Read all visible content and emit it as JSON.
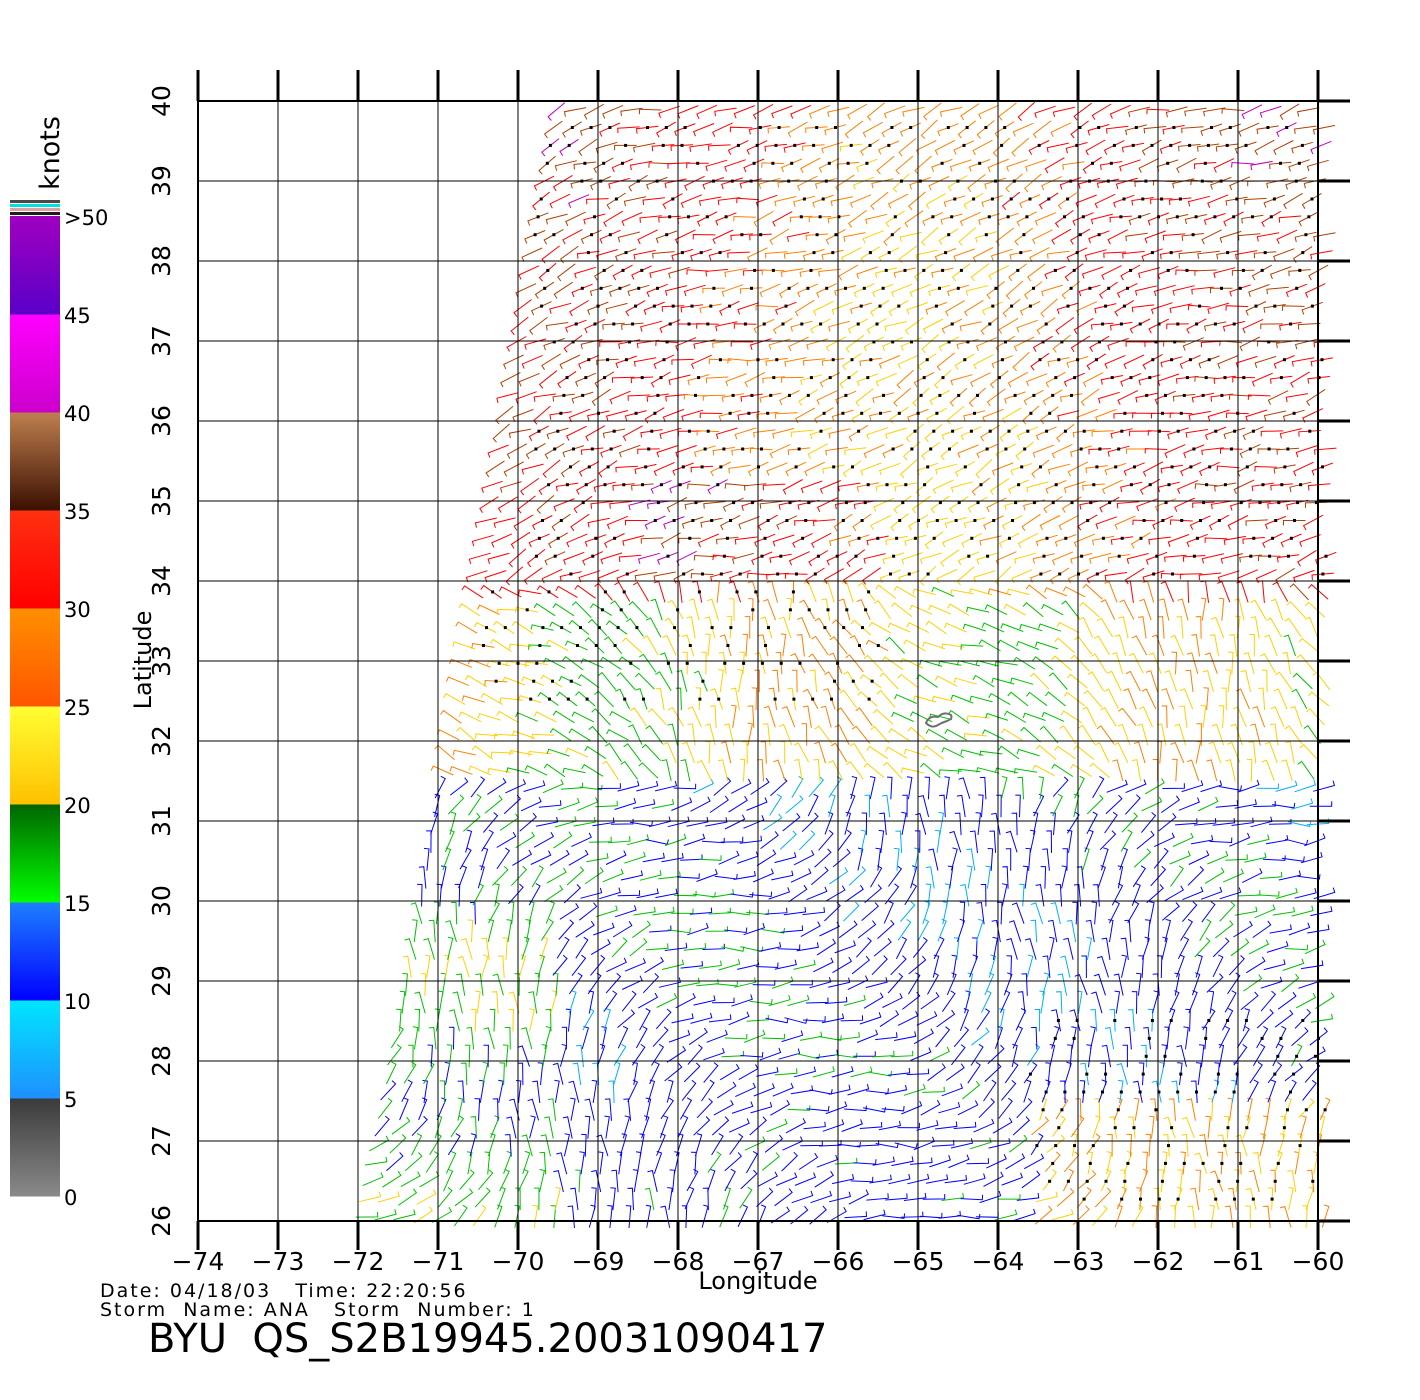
{
  "map": {
    "axes": {
      "xlabel": "Longitude",
      "ylabel": "Latitude",
      "x_ticks": [
        -74,
        -73,
        -72,
        -71,
        -70,
        -69,
        -68,
        -67,
        -66,
        -65,
        -64,
        -63,
        -62,
        -61,
        -60
      ],
      "y_ticks": [
        26,
        27,
        28,
        29,
        30,
        31,
        32,
        33,
        34,
        35,
        36,
        37,
        38,
        39,
        40
      ],
      "x_range": [
        -74,
        -60
      ],
      "y_range": [
        26,
        40
      ],
      "grid": true
    },
    "legend": {
      "title": "knots",
      "labels": [
        {
          "text": "0",
          "value": 0
        },
        {
          "text": "5",
          "value": 5
        },
        {
          "text": "10",
          "value": 10
        },
        {
          "text": "15",
          "value": 15
        },
        {
          "text": "20",
          "value": 20
        },
        {
          "text": "25",
          "value": 25
        },
        {
          "text": "30",
          "value": 30
        },
        {
          "text": "35",
          "value": 35
        },
        {
          "text": "40",
          "value": 40
        },
        {
          "text": "45",
          "value": 45
        },
        {
          "text": ">50",
          "value": 50
        }
      ],
      "bands": [
        {
          "from": 0,
          "to": 5,
          "top": "#3a3a3a",
          "bottom": "#8a8a8a"
        },
        {
          "from": 5,
          "to": 10,
          "top": "#00e6ff",
          "bottom": "#1e90ff"
        },
        {
          "from": 10,
          "to": 15,
          "top": "#1e80ff",
          "bottom": "#0000ff"
        },
        {
          "from": 15,
          "to": 20,
          "top": "#006400",
          "bottom": "#00ff00"
        },
        {
          "from": 20,
          "to": 25,
          "top": "#ffff33",
          "bottom": "#ffc000"
        },
        {
          "from": 25,
          "to": 30,
          "top": "#ff9000",
          "bottom": "#ff5500"
        },
        {
          "from": 30,
          "to": 35,
          "top": "#ff3010",
          "bottom": "#ff0000"
        },
        {
          "from": 35,
          "to": 40,
          "top": "#c08050",
          "bottom": "#3a1000"
        },
        {
          "from": 40,
          "to": 45,
          "top": "#ff00ff",
          "bottom": "#cc00cc"
        },
        {
          "from": 45,
          "to": 50,
          "top": "#a000c0",
          "bottom": "#5a00c8"
        }
      ],
      "top_stripe_colors": [
        "#4a4a4a",
        "#00e0e0",
        "#e0a0a0",
        "#1e1e1e"
      ]
    },
    "wind_colors": {
      "blue": "#0000ff",
      "cyan": "#00b0ff",
      "green": "#00c000",
      "yellow": "#ffd000",
      "orange": "#ff8000",
      "red": "#ff0000",
      "brown": "#b04000",
      "magenta": "#c000c0",
      "rain_flag": "#000000",
      "island_outline": "#707070"
    },
    "island": {
      "lon": -64.75,
      "lat": 32.3
    }
  },
  "footer": {
    "date_label": "Date:",
    "date_value": "04/18/03",
    "time_label": "Time:",
    "time_value": "22:20:56",
    "storm_name_label": "Storm  Name:",
    "storm_name_value": "ANA",
    "storm_number_label": "Storm  Number:",
    "storm_number_value": "1",
    "title": "BYU  QS_S2B19945.20031090417"
  }
}
